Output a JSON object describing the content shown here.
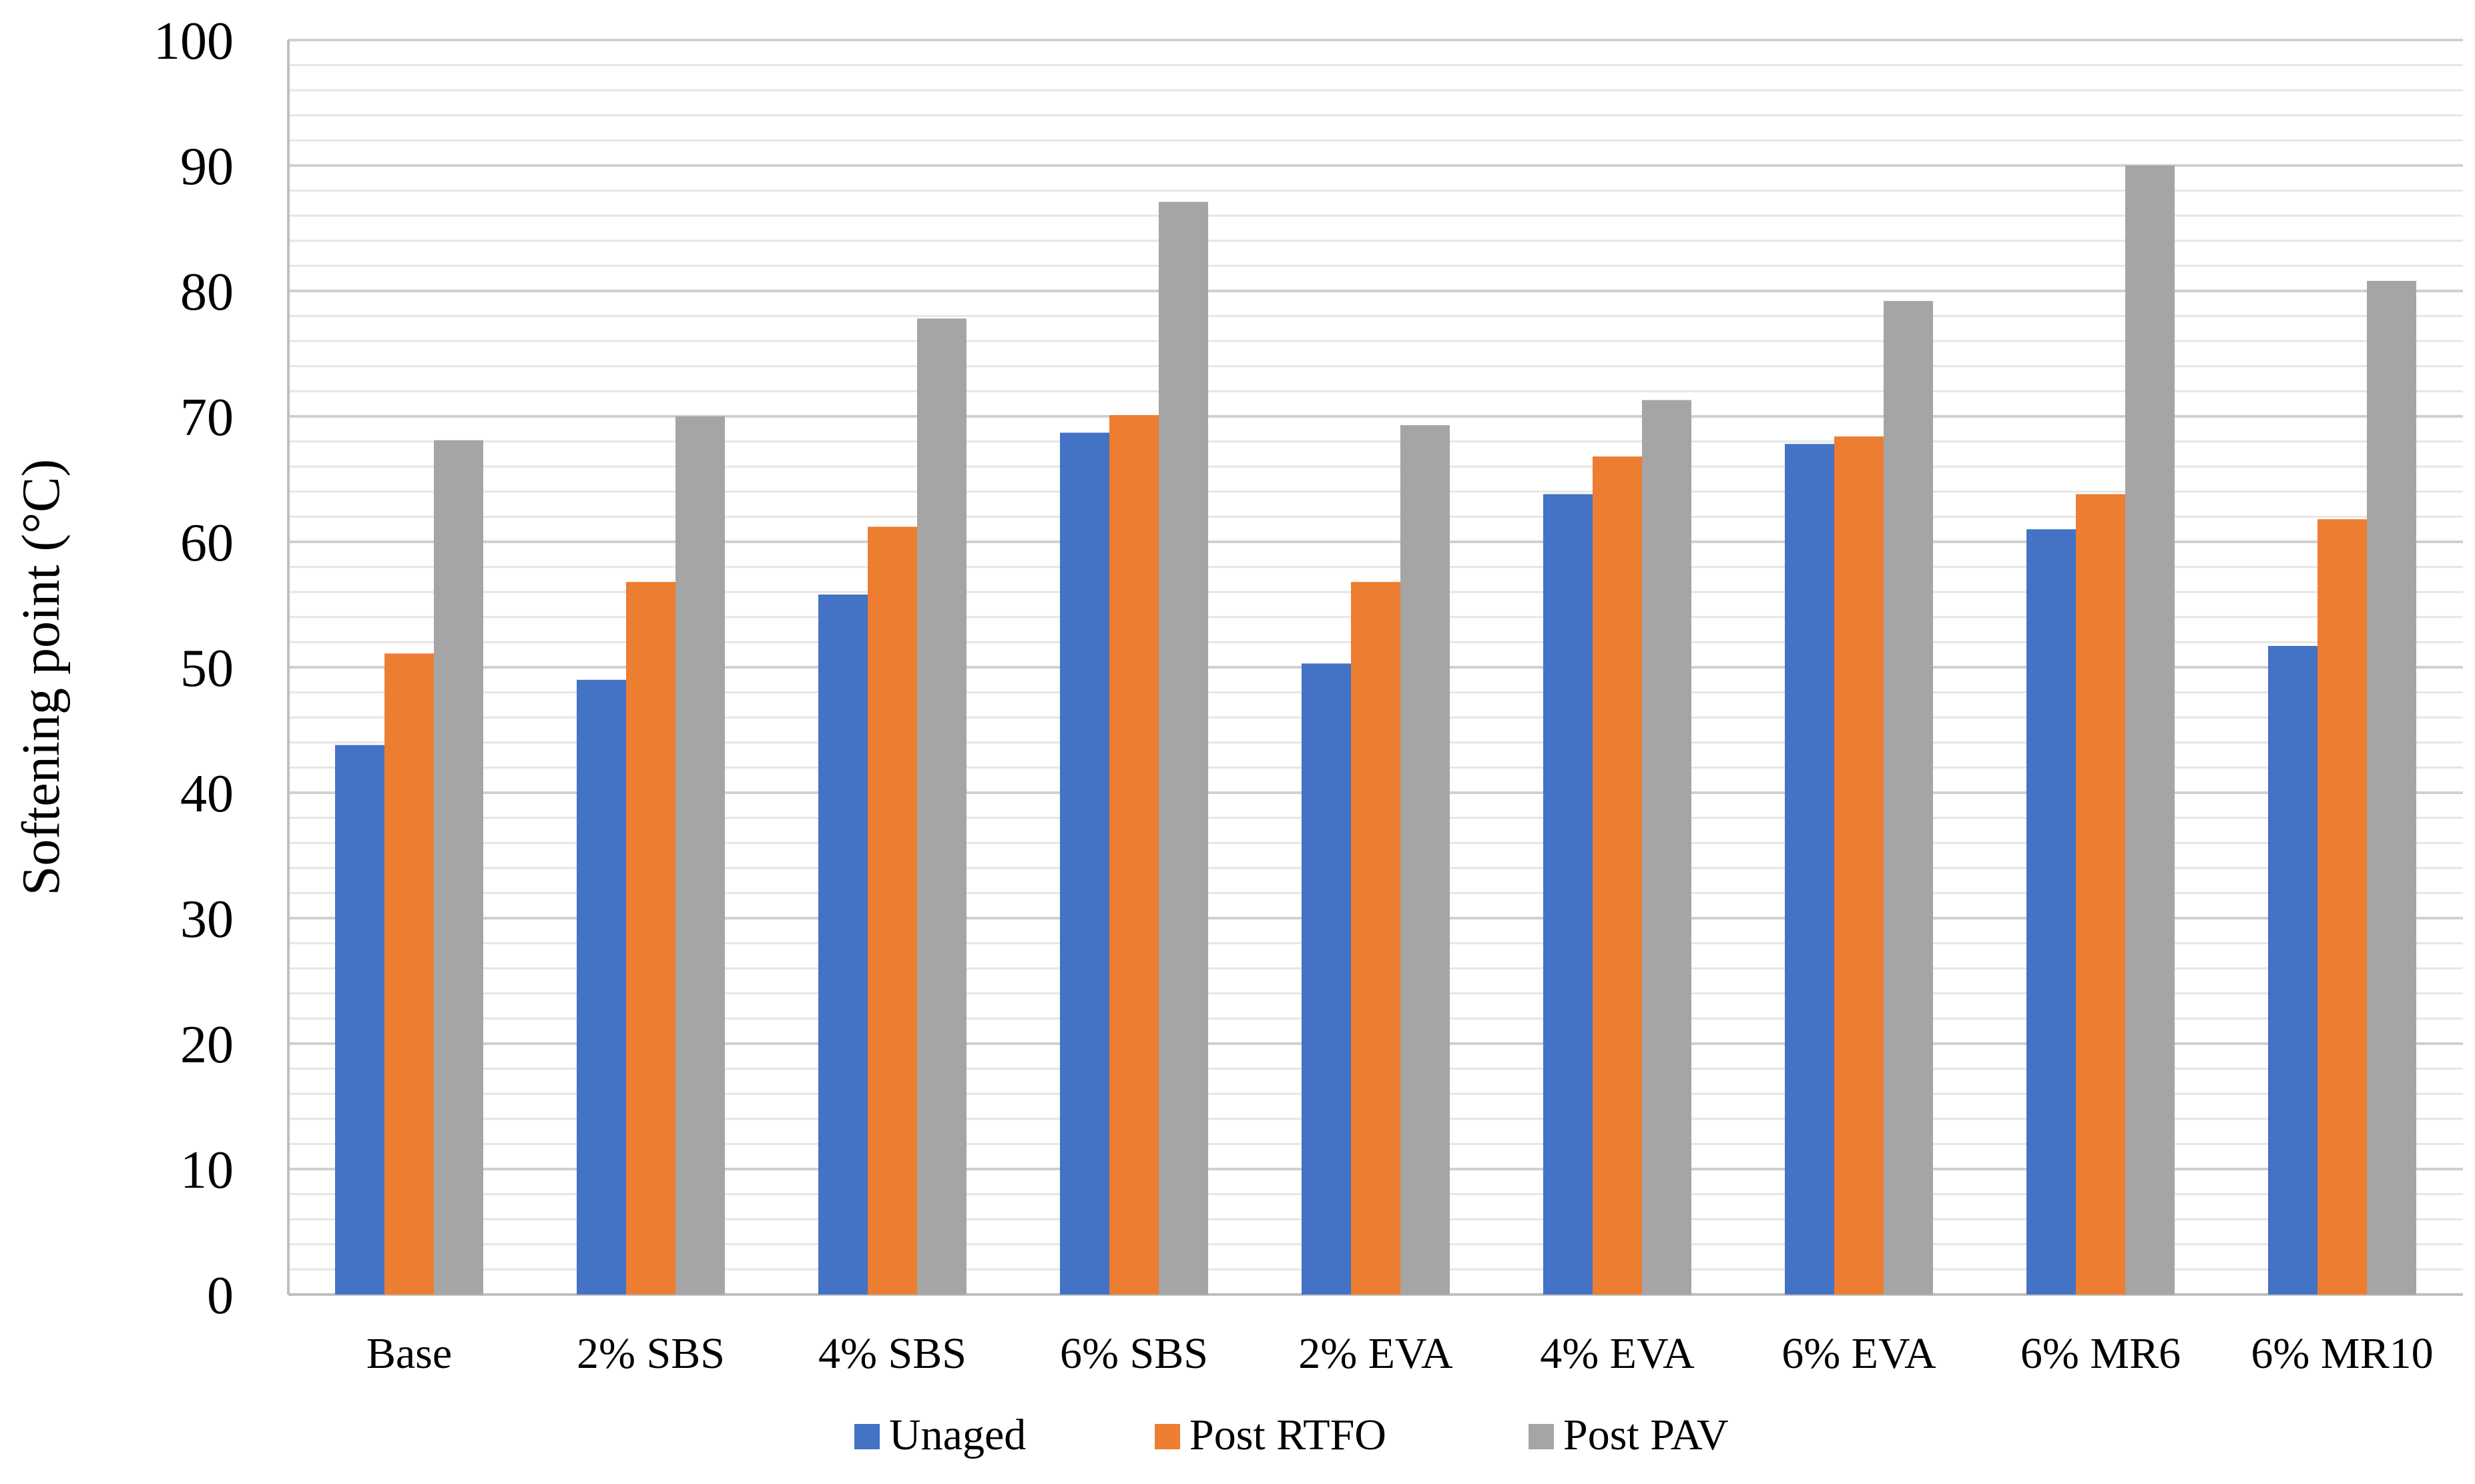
{
  "chart_data": {
    "type": "bar",
    "title": "",
    "xlabel": "",
    "ylabel": "Softening point (°C)",
    "ylim": [
      0,
      100
    ],
    "y_ticks": [
      0,
      10,
      20,
      30,
      40,
      50,
      60,
      70,
      80,
      90,
      100
    ],
    "y_tick_labels": [
      "0",
      "10",
      "20",
      "30",
      "40",
      "50",
      "60",
      "70",
      "80",
      "90",
      "100"
    ],
    "grid": true,
    "legend_position": "bottom",
    "categories": [
      "Base",
      "2% SBS",
      "4% SBS",
      "6% SBS",
      "2% EVA",
      "4% EVA",
      "6% EVA",
      "6% MR6",
      "6% MR10"
    ],
    "series": [
      {
        "name": "Unaged",
        "color": "#4472C4",
        "values": [
          43.8,
          49.0,
          55.8,
          68.7,
          50.3,
          63.8,
          67.8,
          61.0,
          51.7
        ]
      },
      {
        "name": "Post RTFO",
        "color": "#ED7D31",
        "values": [
          51.1,
          56.8,
          61.2,
          70.1,
          56.8,
          66.8,
          68.4,
          63.8,
          61.8
        ]
      },
      {
        "name": "Post PAV",
        "color": "#A5A5A5",
        "values": [
          68.1,
          70.0,
          77.8,
          87.1,
          69.3,
          71.3,
          79.2,
          90.0,
          80.8
        ]
      }
    ]
  }
}
